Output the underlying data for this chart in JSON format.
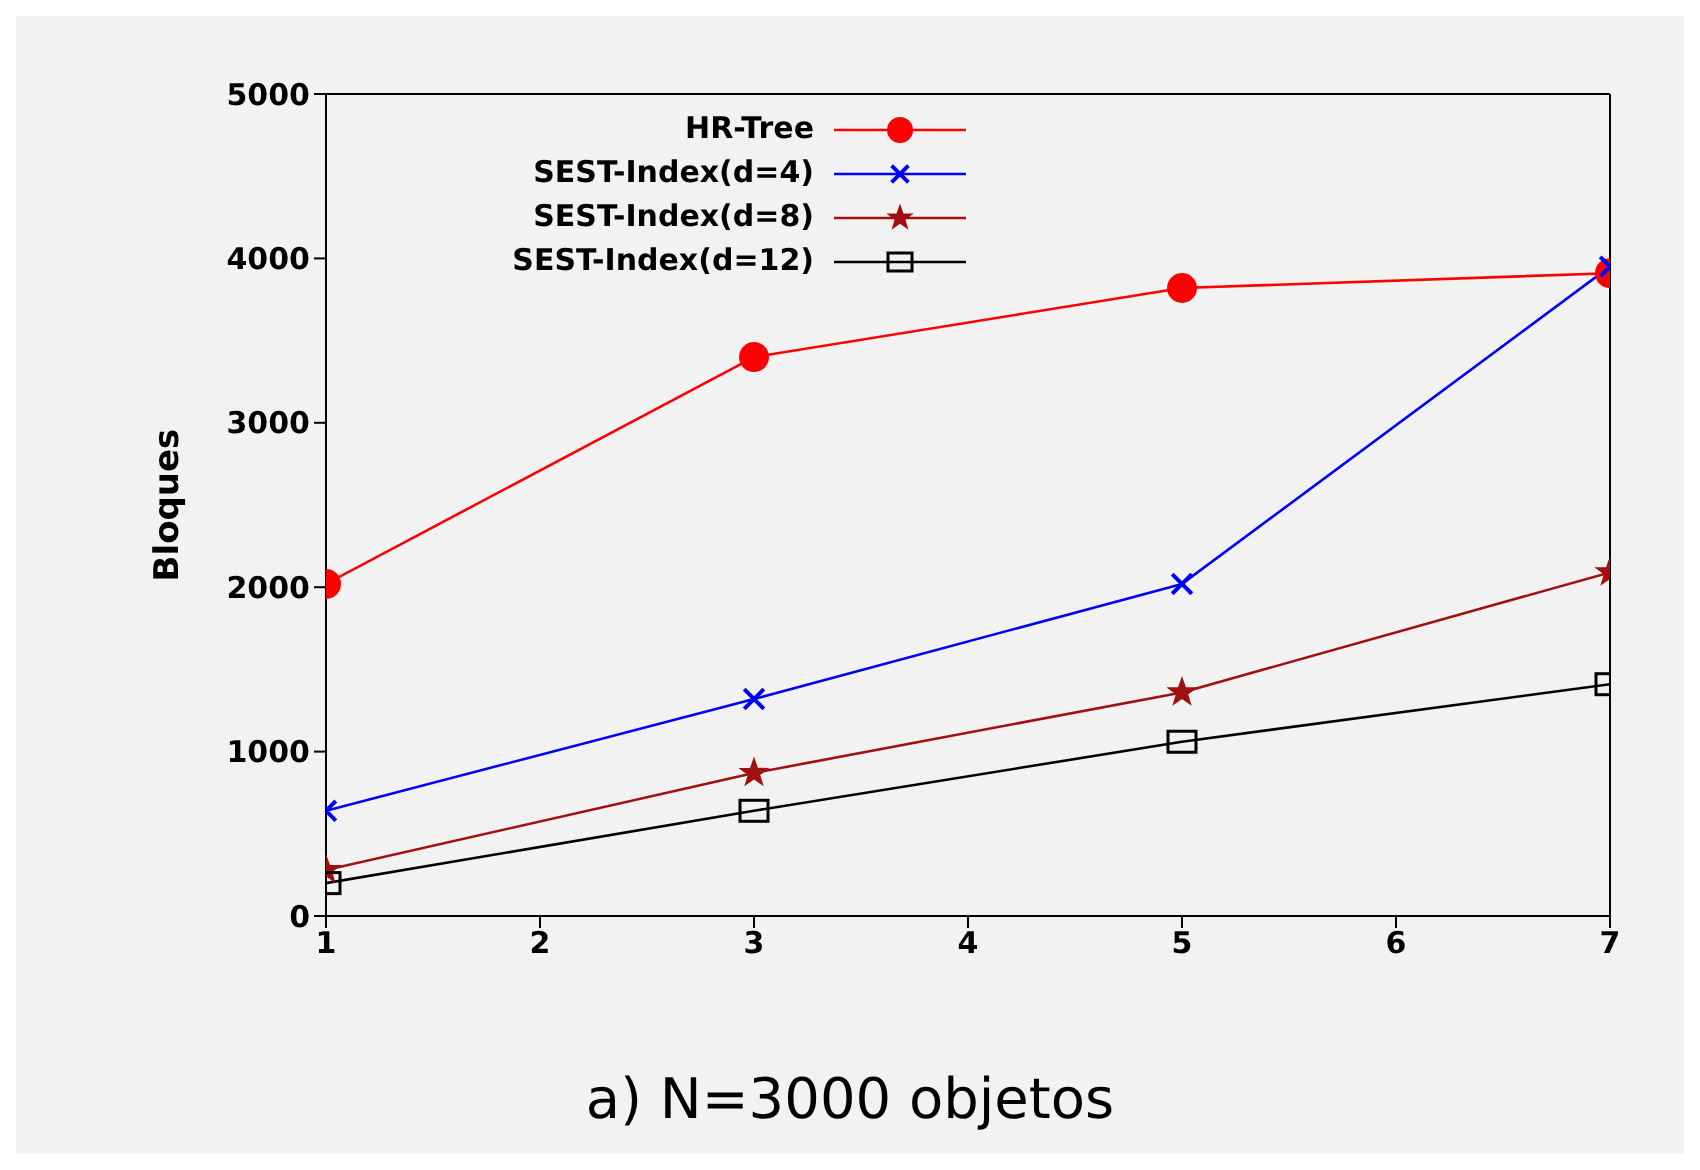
{
  "chart_data": {
    "type": "line",
    "title": "a) N=3000 objetos",
    "ylabel": "Bloques",
    "x": [
      1,
      3,
      5,
      7
    ],
    "xlim": [
      1,
      7
    ],
    "xticks": [
      1,
      2,
      3,
      4,
      5,
      6,
      7
    ],
    "ylim": [
      0,
      5000
    ],
    "yticks": [
      0,
      1000,
      2000,
      3000,
      4000,
      5000
    ],
    "grid": false,
    "legend": "top",
    "series": [
      {
        "name": "HR-Tree",
        "color": "#ff0000",
        "marker": "circle",
        "values": [
          2020,
          3400,
          3820,
          3910
        ]
      },
      {
        "name": "SEST-Index(d=4)",
        "color": "#0000ff",
        "marker": "cross",
        "values": [
          640,
          1320,
          2020,
          3950
        ]
      },
      {
        "name": "SEST-Index(d=8)",
        "color": "#a01010",
        "marker": "star",
        "values": [
          280,
          870,
          1360,
          2090
        ]
      },
      {
        "name": "SEST-Index(d=12)",
        "color": "#000000",
        "marker": "square",
        "values": [
          200,
          640,
          1060,
          1410
        ]
      }
    ]
  }
}
